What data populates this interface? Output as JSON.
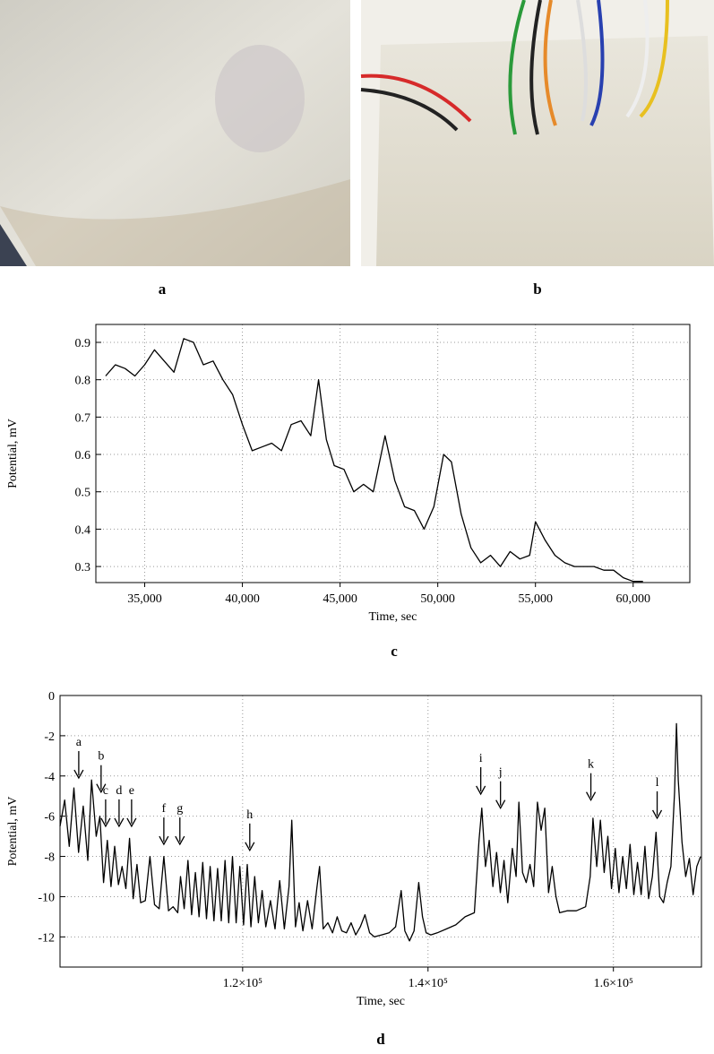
{
  "panel_labels": [
    "a",
    "b",
    "c",
    "d"
  ],
  "chart_data": [
    {
      "type": "line",
      "xlabel": "Time, sec",
      "ylabel": "Potential, mV",
      "color": "#000000",
      "grid": true,
      "xlim": [
        32500,
        62900
      ],
      "ylim": [
        0.257,
        0.948
      ],
      "xticks": [
        {
          "value": 35000,
          "label": "35,000"
        },
        {
          "value": 40000,
          "label": "40,000"
        },
        {
          "value": 45000,
          "label": "45,000"
        },
        {
          "value": 50000,
          "label": "50,000"
        },
        {
          "value": 55000,
          "label": "55,000"
        },
        {
          "value": 60000,
          "label": "60,000"
        }
      ],
      "yticks": [
        0.3,
        0.4,
        0.5,
        0.6,
        0.7,
        0.8,
        0.9
      ],
      "x": [
        33000,
        33500,
        34000,
        34500,
        35000,
        35500,
        36000,
        36500,
        37000,
        37500,
        38000,
        38500,
        39000,
        39500,
        40000,
        40500,
        41000,
        41500,
        42000,
        42500,
        43000,
        43500,
        43900,
        44300,
        44700,
        45200,
        45700,
        46200,
        46700,
        47300,
        47800,
        48300,
        48800,
        49300,
        49800,
        50300,
        50700,
        51200,
        51700,
        52200,
        52700,
        53200,
        53700,
        54200,
        54700,
        55000,
        55500,
        56000,
        56500,
        57000,
        57500,
        58000,
        58500,
        59000,
        59500,
        60000,
        60500
      ],
      "values": [
        0.81,
        0.84,
        0.83,
        0.81,
        0.84,
        0.88,
        0.85,
        0.82,
        0.91,
        0.9,
        0.84,
        0.85,
        0.8,
        0.76,
        0.68,
        0.61,
        0.62,
        0.63,
        0.61,
        0.68,
        0.69,
        0.65,
        0.8,
        0.64,
        0.57,
        0.56,
        0.5,
        0.52,
        0.5,
        0.65,
        0.53,
        0.46,
        0.45,
        0.4,
        0.46,
        0.6,
        0.58,
        0.44,
        0.35,
        0.31,
        0.33,
        0.3,
        0.34,
        0.32,
        0.33,
        0.42,
        0.37,
        0.33,
        0.31,
        0.3,
        0.3,
        0.3,
        0.29,
        0.29,
        0.27,
        0.26,
        0.26
      ]
    },
    {
      "type": "line",
      "xlabel": "Time, sec",
      "ylabel": "Potential, mV",
      "color": "#000000",
      "grid": true,
      "xlim": [
        100300,
        169500
      ],
      "ylim": [
        -13.5,
        0
      ],
      "xticks": [
        {
          "value": 120000,
          "label": "1.2×10⁵"
        },
        {
          "value": 140000,
          "label": "1.4×10⁵"
        },
        {
          "value": 160000,
          "label": "1.6×10⁵"
        }
      ],
      "yticks": [
        0,
        -2,
        -4,
        -6,
        -8,
        -10,
        -12
      ],
      "annotations": [
        {
          "text": "a",
          "x": 102320,
          "y": -4.1
        },
        {
          "text": "b",
          "x": 104730,
          "y": -4.8
        },
        {
          "text": "c",
          "x": 105220,
          "y": -6.5
        },
        {
          "text": "d",
          "x": 106670,
          "y": -6.5
        },
        {
          "text": "e",
          "x": 108020,
          "y": -6.5
        },
        {
          "text": "f",
          "x": 111500,
          "y": -7.4
        },
        {
          "text": "g",
          "x": 113230,
          "y": -7.4
        },
        {
          "text": "h",
          "x": 120770,
          "y": -7.7
        },
        {
          "text": "i",
          "x": 145690,
          "y": -4.9
        },
        {
          "text": "j",
          "x": 147820,
          "y": -5.6
        },
        {
          "text": "k",
          "x": 157570,
          "y": -5.2
        },
        {
          "text": "l",
          "x": 164720,
          "y": -6.1
        }
      ],
      "x": [
        100300,
        100800,
        101300,
        101800,
        102300,
        102800,
        103300,
        103700,
        104200,
        104600,
        105000,
        105400,
        105800,
        106200,
        106600,
        107000,
        107400,
        107800,
        108200,
        108600,
        109000,
        109500,
        110000,
        110500,
        111000,
        111500,
        112000,
        112500,
        113000,
        113300,
        113700,
        114100,
        114500,
        114900,
        115300,
        115700,
        116100,
        116500,
        116900,
        117300,
        117700,
        118100,
        118500,
        118900,
        119300,
        119700,
        120100,
        120500,
        120900,
        121300,
        121700,
        122100,
        122500,
        123000,
        123500,
        124000,
        124500,
        125000,
        125300,
        125700,
        126100,
        126500,
        127000,
        127500,
        128000,
        128300,
        128700,
        129200,
        129700,
        130200,
        130700,
        131200,
        131700,
        132200,
        132700,
        133200,
        133700,
        134200,
        135000,
        135800,
        136500,
        137100,
        137500,
        138000,
        138500,
        139000,
        139400,
        139800,
        140300,
        141000,
        142000,
        143000,
        144000,
        145000,
        145500,
        145800,
        146200,
        146600,
        147000,
        147400,
        147800,
        148200,
        148600,
        149100,
        149500,
        149800,
        150200,
        150600,
        151000,
        151400,
        151800,
        152200,
        152600,
        153000,
        153400,
        153800,
        154200,
        155000,
        156000,
        157000,
        157500,
        157800,
        158200,
        158600,
        159000,
        159400,
        159800,
        160200,
        160600,
        161000,
        161400,
        161800,
        162200,
        162600,
        163000,
        163400,
        163800,
        164200,
        164600,
        165000,
        165400,
        165800,
        166200,
        166600,
        166800,
        167000,
        167400,
        167800,
        168200,
        168600,
        169000,
        169400
      ],
      "values": [
        -6.5,
        -5.2,
        -7.5,
        -4.6,
        -7.8,
        -5.5,
        -8.2,
        -4.2,
        -7.0,
        -6.0,
        -9.3,
        -7.2,
        -9.5,
        -7.5,
        -9.4,
        -8.5,
        -9.6,
        -7.1,
        -10.1,
        -8.4,
        -10.3,
        -10.2,
        -8.0,
        -10.4,
        -10.6,
        -8.0,
        -10.7,
        -10.5,
        -10.8,
        -9.0,
        -10.6,
        -8.2,
        -10.9,
        -8.8,
        -11.0,
        -8.3,
        -11.1,
        -8.5,
        -11.2,
        -8.6,
        -11.2,
        -8.2,
        -11.3,
        -8.0,
        -11.3,
        -8.5,
        -11.4,
        -8.4,
        -11.5,
        -9.0,
        -11.3,
        -9.7,
        -11.5,
        -10.2,
        -11.6,
        -9.2,
        -11.6,
        -9.5,
        -6.2,
        -11.5,
        -10.3,
        -11.7,
        -10.2,
        -11.6,
        -9.6,
        -8.5,
        -11.6,
        -11.3,
        -11.8,
        -11.0,
        -11.7,
        -11.8,
        -11.3,
        -11.9,
        -11.5,
        -10.9,
        -11.8,
        -12.0,
        -11.9,
        -11.8,
        -11.5,
        -9.7,
        -11.7,
        -12.2,
        -11.7,
        -9.3,
        -11.0,
        -11.8,
        -11.9,
        -11.8,
        -11.6,
        -11.4,
        -11.0,
        -10.8,
        -7.2,
        -5.6,
        -8.5,
        -7.2,
        -9.5,
        -7.8,
        -9.8,
        -8.2,
        -10.3,
        -7.6,
        -9.0,
        -5.3,
        -8.8,
        -9.3,
        -8.4,
        -9.5,
        -5.3,
        -6.7,
        -5.6,
        -9.8,
        -8.5,
        -10.0,
        -10.8,
        -10.7,
        -10.7,
        -10.5,
        -9.0,
        -6.1,
        -8.5,
        -6.2,
        -8.8,
        -7.0,
        -9.6,
        -7.6,
        -9.8,
        -8.0,
        -9.6,
        -7.4,
        -9.9,
        -8.3,
        -9.9,
        -7.5,
        -10.1,
        -9.0,
        -6.8,
        -10.0,
        -10.3,
        -9.3,
        -8.5,
        -4.8,
        -1.4,
        -4.2,
        -7.3,
        -9.0,
        -8.1,
        -9.9,
        -8.5,
        -8.0
      ]
    }
  ]
}
